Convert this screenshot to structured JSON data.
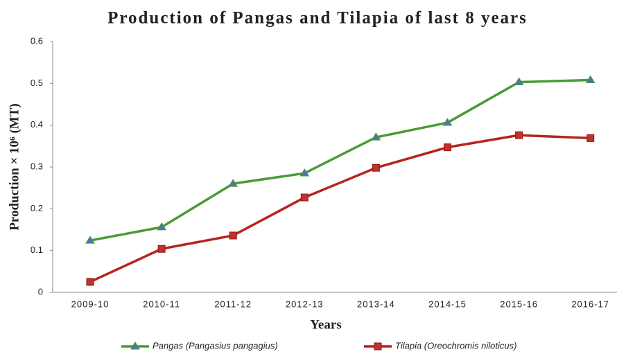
{
  "chart_data": {
    "type": "line",
    "title": "Production of Pangas and Tilapia of last 8 years",
    "x_label": "Years",
    "y_label": "Production × 10⁶ (MT)",
    "categories": [
      "2009-10",
      "2010-11",
      "2011-12",
      "2012-13",
      "2013-14",
      "2014-15",
      "2015-16",
      "2016-17"
    ],
    "series": [
      {
        "name": "Pangas (Pangasius pangagius)",
        "color": "#4a9a35",
        "marker": "triangle",
        "marker_color": "#4f72b8",
        "values": [
          0.124,
          0.156,
          0.26,
          0.285,
          0.371,
          0.406,
          0.503,
          0.508
        ]
      },
      {
        "name": "Tilapia (Oreochromis niloticus)",
        "color": "#b5241f",
        "marker": "square",
        "marker_color": "#c0332d",
        "values": [
          0.025,
          0.104,
          0.136,
          0.227,
          0.298,
          0.347,
          0.376,
          0.369
        ]
      }
    ],
    "ylim": [
      0,
      0.6
    ],
    "yticks": [
      0,
      0.1,
      0.2,
      0.3,
      0.4,
      0.5,
      0.6
    ],
    "grid": false,
    "legend": "bottom"
  }
}
